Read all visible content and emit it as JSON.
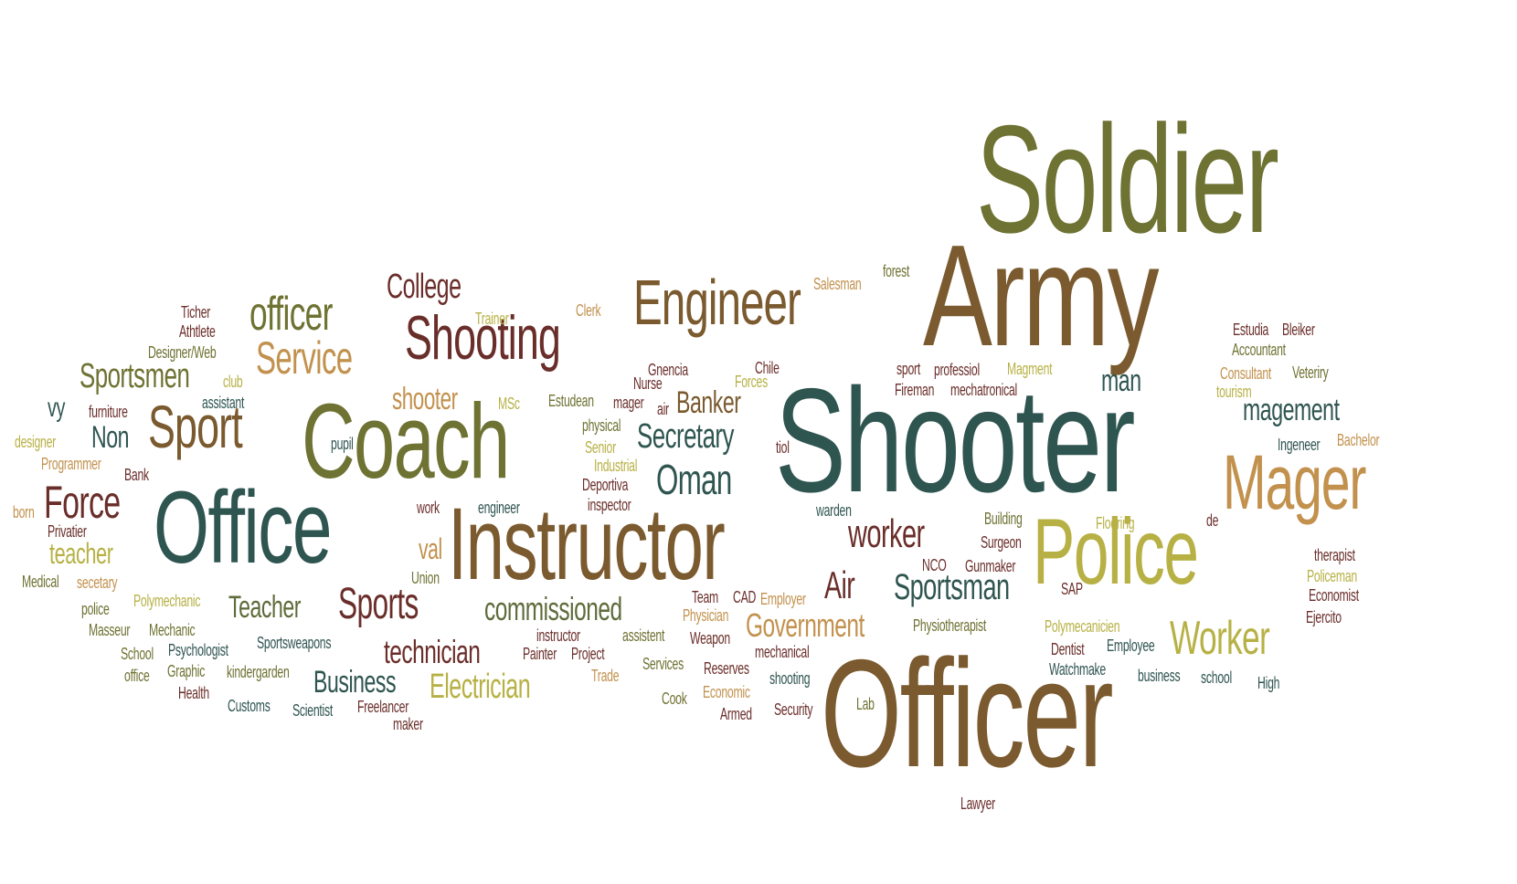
{
  "word_cloud": {
    "palette": {
      "olive": "#6e7232",
      "brown": "#7a5a2e",
      "teal": "#2f5550",
      "yellow": "#b7b145",
      "tan": "#c2914d",
      "maroon": "#6a2e2a",
      "green": "#5e6b3a"
    },
    "words": [
      "Soldier",
      "Army",
      "Shooter",
      "Officer",
      "Coach",
      "Office",
      "Instructor",
      "Police",
      "Mager",
      "Engineer",
      "Shooting",
      "Sport",
      "officer",
      "Service",
      "Worker",
      "Force",
      "Sportsmen",
      "College",
      "Sports",
      "Oman",
      "Secretary",
      "Banker",
      "worker",
      "Sportsman",
      "commissioned",
      "technician",
      "Electrician",
      "Business",
      "Government",
      "Teacher",
      "teacher",
      "Air",
      "shooter",
      "magement",
      "man",
      "Non",
      "vy",
      "val",
      "Employee",
      "Dentist",
      "Watchmake",
      "business",
      "school",
      "High",
      "Polymecanicien",
      "Physiotherapist",
      "Ejercito",
      "Economist",
      "Policeman",
      "therapist",
      "Flooring",
      "de",
      "Bachelor",
      "Ingeneer",
      "tourism",
      "Consultant",
      "Veteriry",
      "Accountant",
      "Estudia",
      "Bleiker",
      "Magment",
      "professiol",
      "sport",
      "Fireman",
      "mechatronical",
      "forest",
      "Salesman",
      "Chile",
      "Forces",
      "Gnencia",
      "Nurse",
      "mager",
      "air",
      "Estudean",
      "MSc",
      "Clerk",
      "Trainer",
      "Ticher",
      "Athtlete",
      "Designer/Web",
      "club",
      "assistant",
      "furniture",
      "designer",
      "Programmer",
      "Bank",
      "pupil",
      "born",
      "Privatier",
      "Medical",
      "secetary",
      "police",
      "Polymechanic",
      "Masseur",
      "Mechanic",
      "School",
      "Psychologist",
      "Sportsweapons",
      "office",
      "Graphic",
      "kindergarden",
      "Health",
      "Customs",
      "Scientist",
      "Freelancer",
      "maker",
      "work",
      "engineer",
      "inspector",
      "Deportiva",
      "Industrial",
      "Senior",
      "physical",
      "tiol",
      "warden",
      "Building",
      "Surgeon",
      "Gunmaker",
      "NCO",
      "Union",
      "SAP",
      "Team",
      "CAD",
      "Employer",
      "Physician",
      "instructor",
      "assistent",
      "Weapon",
      "Painter",
      "Project",
      "Services",
      "Reserves",
      "mechanical",
      "Trade",
      "Cook",
      "Economic",
      "shooting",
      "Armed",
      "Security",
      "Lab",
      "Lawyer"
    ]
  }
}
